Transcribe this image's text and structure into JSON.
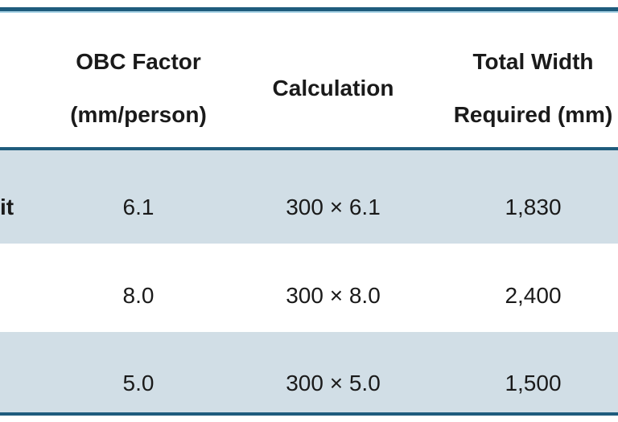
{
  "colors": {
    "border_dark": "#1f5c7d",
    "border_accent": "#aad4e6",
    "row_shade": "#d1dee6",
    "text": "#1a1a1a"
  },
  "table": {
    "header": [
      {
        "line1": "",
        "line2": ""
      },
      {
        "line1": "OBC Factor",
        "line2": "(mm/person)"
      },
      {
        "line1": "Calculation",
        "line2": ""
      },
      {
        "line1": "Total Width",
        "line2": "Required (mm)"
      }
    ],
    "rows": [
      {
        "label_fragment": "it",
        "obc_factor": "6.1",
        "calculation": "300 × 6.1",
        "total_width_mm": "1,830"
      },
      {
        "label_fragment": "",
        "obc_factor": "8.0",
        "calculation": "300 × 8.0",
        "total_width_mm": "2,400"
      },
      {
        "label_fragment": "",
        "obc_factor": "5.0",
        "calculation": "300 × 5.0",
        "total_width_mm": "1,500"
      }
    ]
  }
}
